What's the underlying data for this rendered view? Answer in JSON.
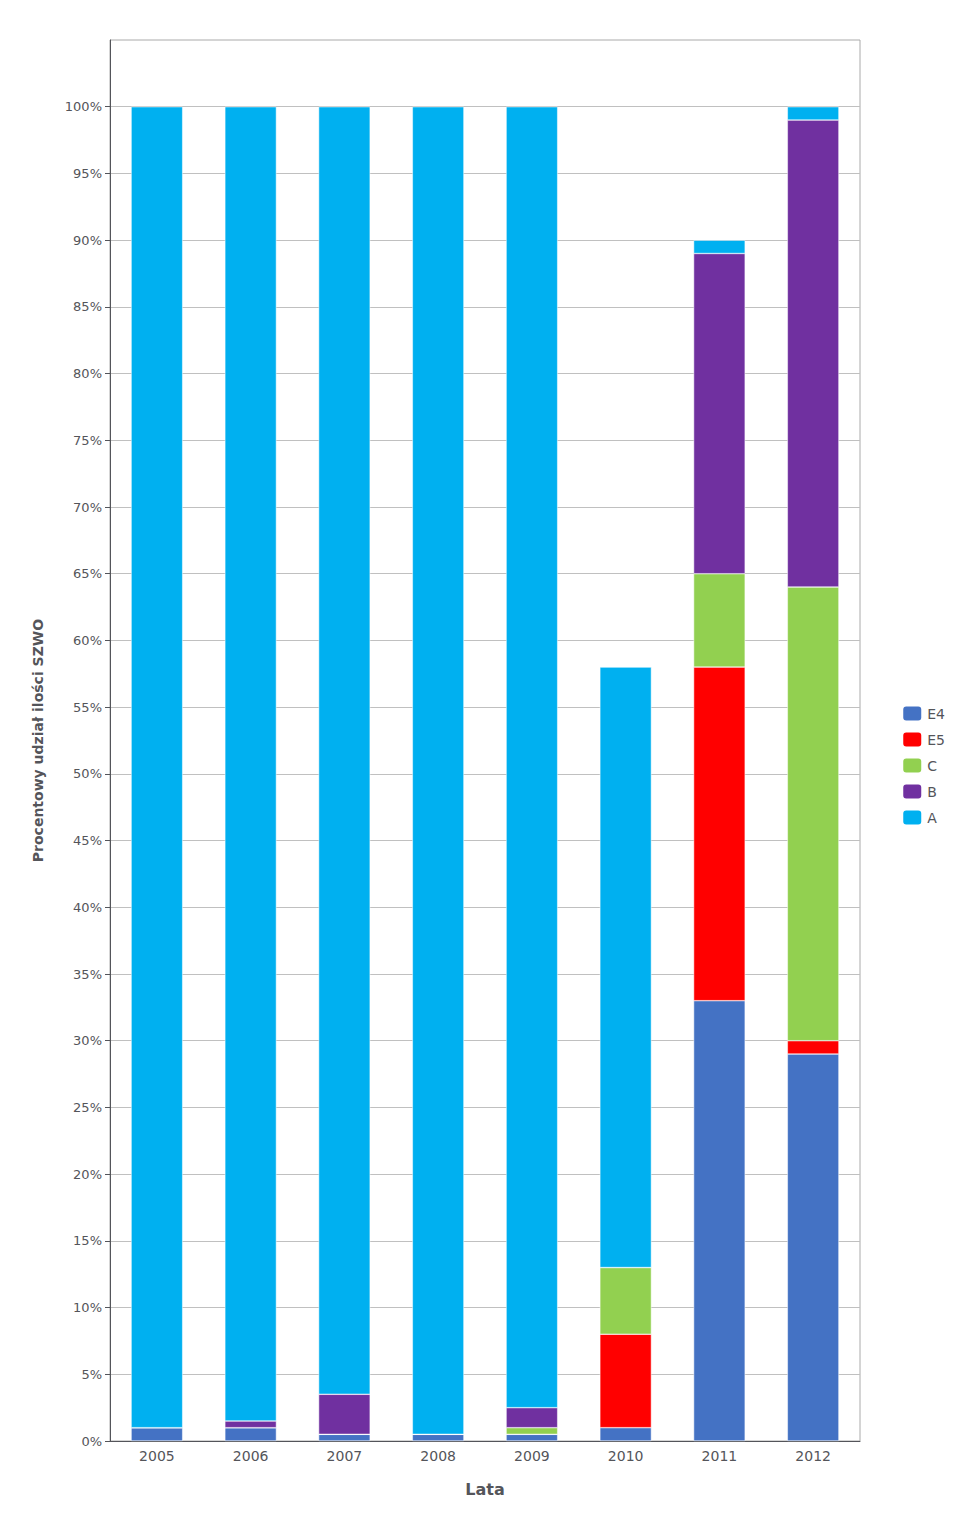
{
  "chart_data": {
    "type": "bar",
    "stacked": true,
    "categories": [
      "2005",
      "2006",
      "2007",
      "2008",
      "2009",
      "2010",
      "2011",
      "2012"
    ],
    "series": [
      {
        "name": "E4",
        "color": "#4472C4",
        "values": [
          1.0,
          1.0,
          0.5,
          0.5,
          0.5,
          1.0,
          33.0,
          29.0
        ]
      },
      {
        "name": "E5",
        "color": "#FF0000",
        "values": [
          0.0,
          0.0,
          0.0,
          0.0,
          0.0,
          7.0,
          25.0,
          1.0
        ]
      },
      {
        "name": "C",
        "color": "#92D050",
        "values": [
          0.0,
          0.0,
          0.0,
          0.0,
          0.5,
          5.0,
          7.0,
          34.0
        ]
      },
      {
        "name": "B",
        "color": "#7030A0",
        "values": [
          0.0,
          0.5,
          3.0,
          0.0,
          1.5,
          0.0,
          24.0,
          35.0
        ]
      },
      {
        "name": "A",
        "color": "#00B0F0",
        "values": [
          99.0,
          98.5,
          96.5,
          99.5,
          97.5,
          45.0,
          1.0,
          1.0
        ]
      }
    ],
    "xlabel": "Lata",
    "ylabel": "Procentowy udział ilości SZWO",
    "ylim": [
      0,
      105
    ],
    "yticks": [
      {
        "value": 0,
        "label": "0%"
      },
      {
        "value": 5,
        "label": "5%"
      },
      {
        "value": 10,
        "label": "10%"
      },
      {
        "value": 15,
        "label": "15%"
      },
      {
        "value": 20,
        "label": "20%"
      },
      {
        "value": 25,
        "label": "25%"
      },
      {
        "value": 30,
        "label": "30%"
      },
      {
        "value": 35,
        "label": "35%"
      },
      {
        "value": 40,
        "label": "40%"
      },
      {
        "value": 45,
        "label": "45%"
      },
      {
        "value": 50,
        "label": "50%"
      },
      {
        "value": 55,
        "label": "55%"
      },
      {
        "value": 60,
        "label": "60%"
      },
      {
        "value": 65,
        "label": "65%"
      },
      {
        "value": 70,
        "label": "70%"
      },
      {
        "value": 75,
        "label": "75%"
      },
      {
        "value": 80,
        "label": "80%"
      },
      {
        "value": 85,
        "label": "85%"
      },
      {
        "value": 90,
        "label": "90%"
      },
      {
        "value": 95,
        "label": "95%"
      },
      {
        "value": 100,
        "label": "100%"
      }
    ],
    "grid": true,
    "legend": "right"
  }
}
